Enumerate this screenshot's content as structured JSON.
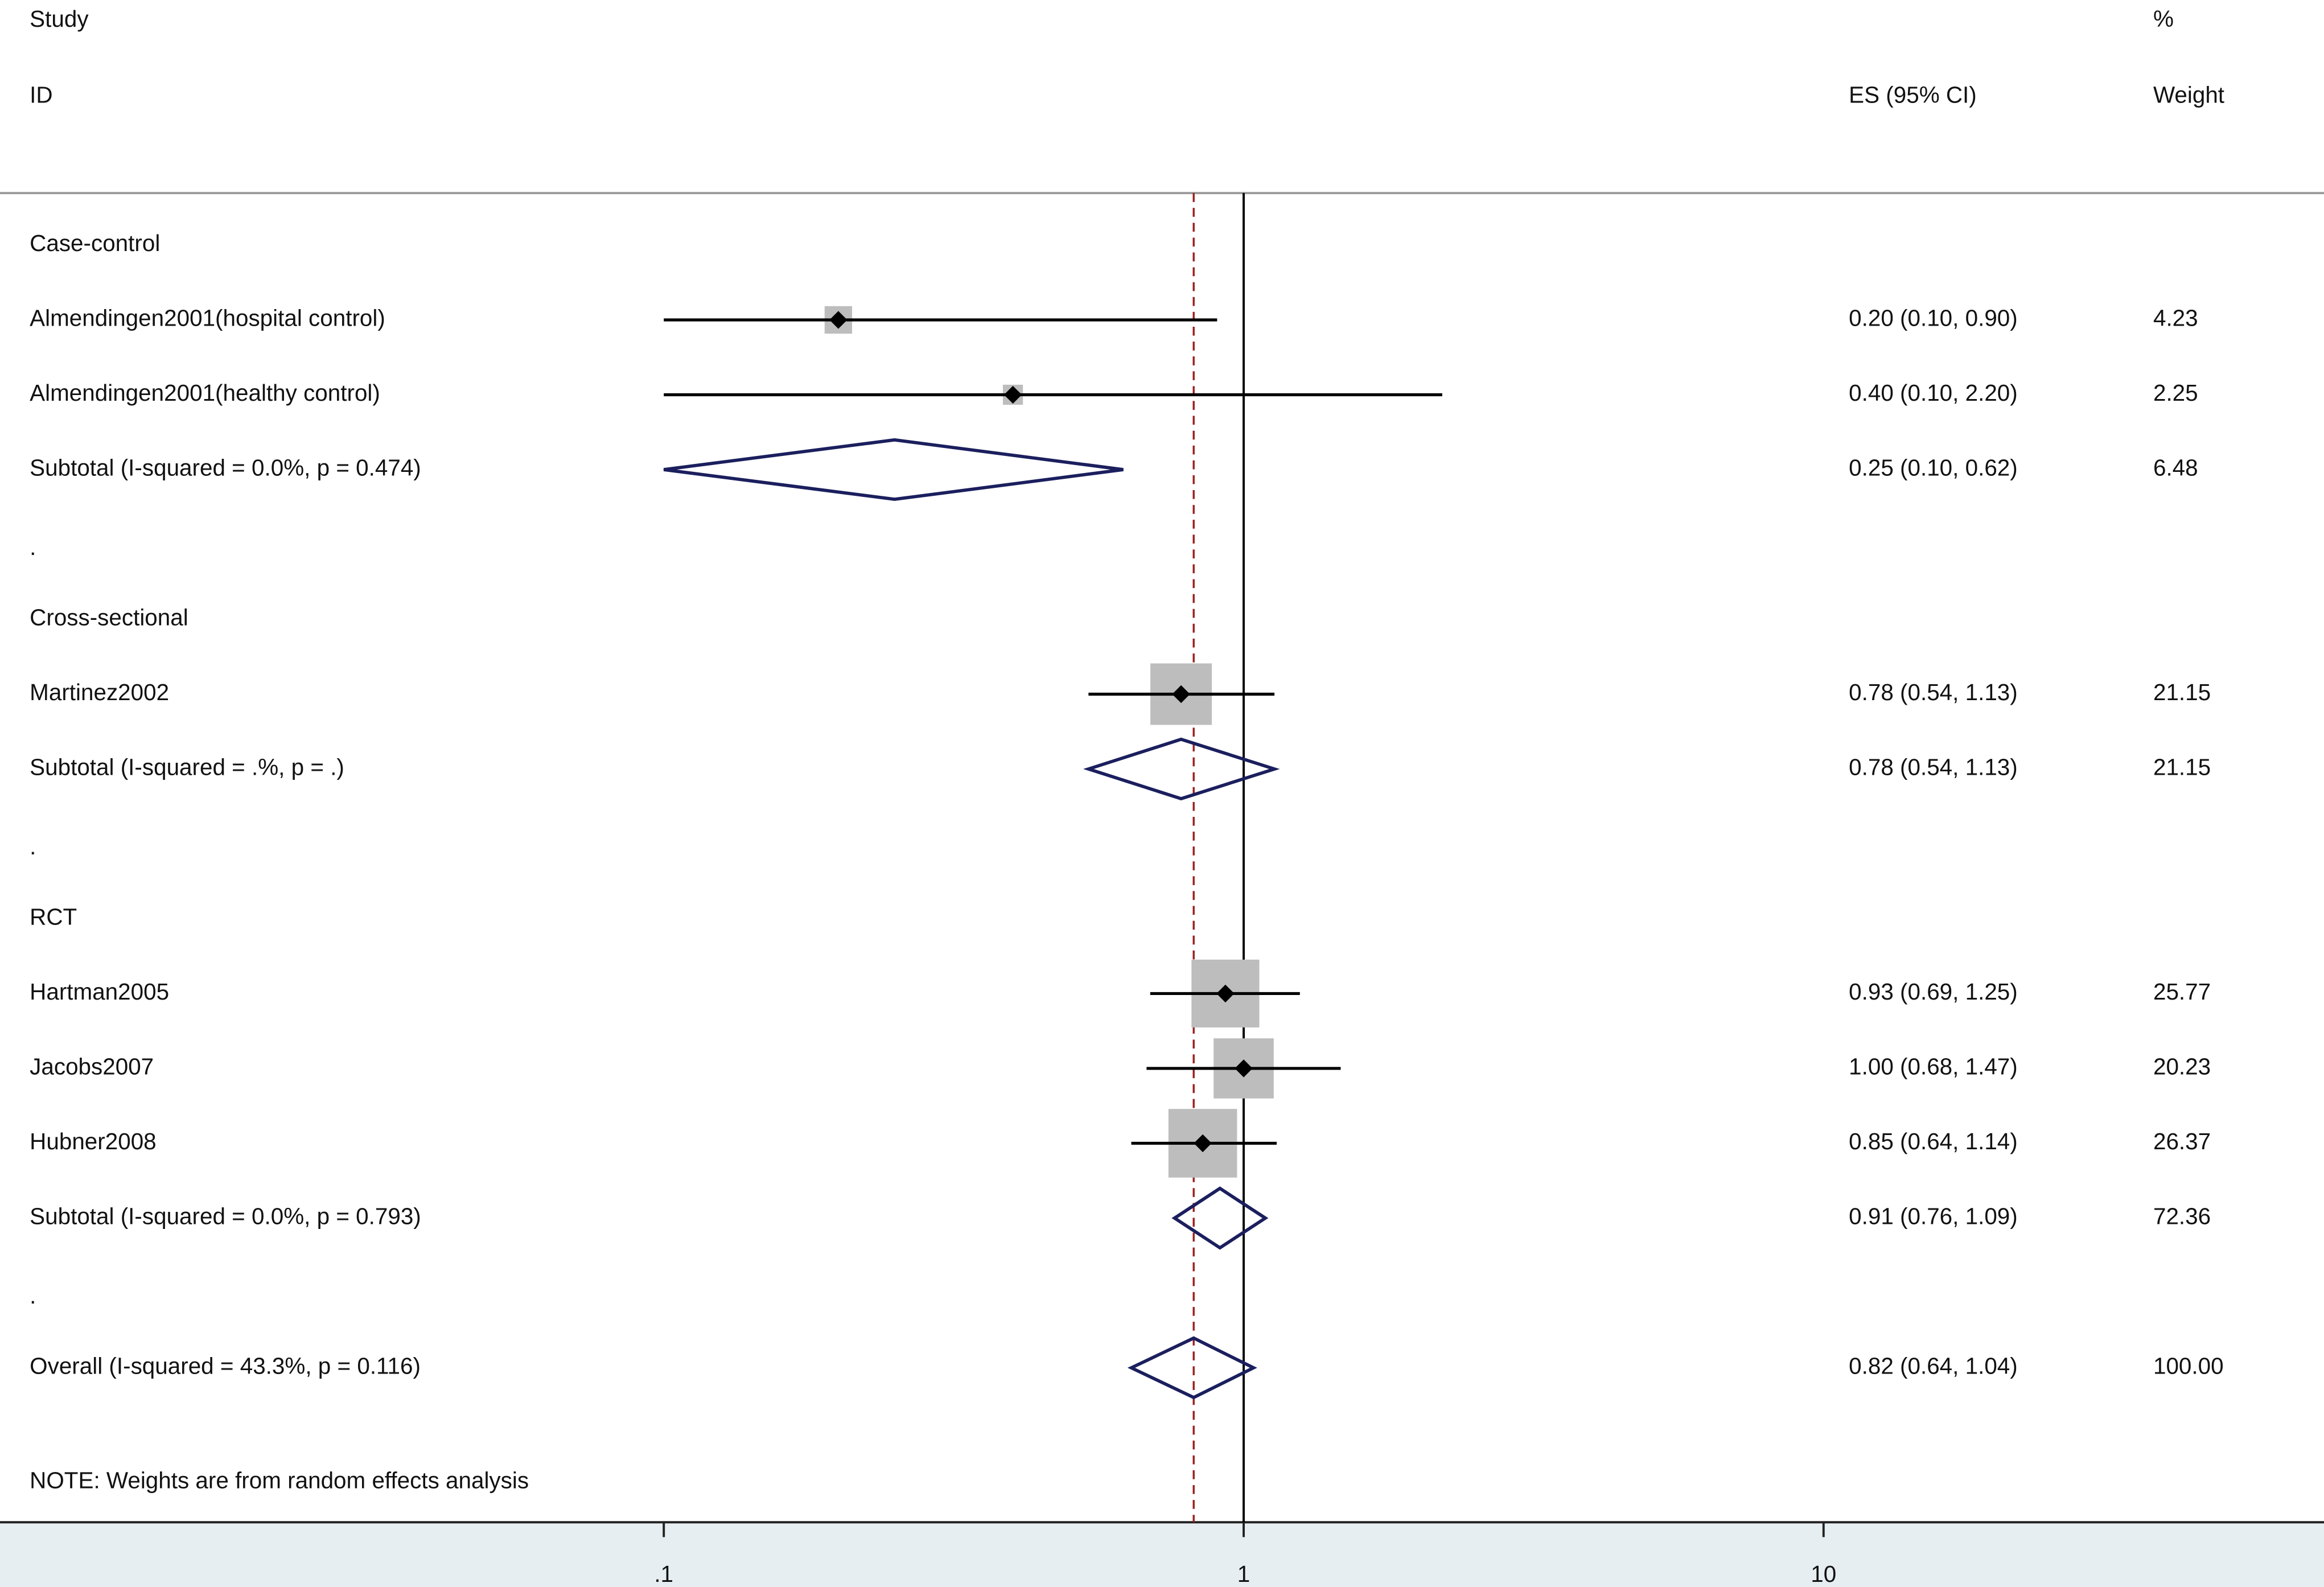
{
  "chart_data": {
    "type": "forest",
    "headers": {
      "study": "Study",
      "id": "ID",
      "es": "ES (95% CI)",
      "percent": "%",
      "weight": "Weight"
    },
    "log_x": true,
    "xlim": [
      0.1,
      10
    ],
    "xticks": [
      {
        "value": 0.1,
        "label": ".1"
      },
      1,
      10
    ],
    "null_line": 1,
    "colors": {
      "box": "#bdbdbd",
      "diamond": "#1b1f5e",
      "reference": "#9b1c1c",
      "axis_band": "#e6eef1"
    },
    "rows": [
      {
        "kind": "group",
        "label": "Case-control"
      },
      {
        "kind": "study",
        "label": "Almendingen2001(hospital control)",
        "es": 0.2,
        "lo": 0.1,
        "hi": 0.9,
        "es_label": "0.20 (0.10, 0.90)",
        "weight": 4.23
      },
      {
        "kind": "study",
        "label": "Almendingen2001(healthy control)",
        "es": 0.4,
        "lo": 0.1,
        "hi": 2.2,
        "es_label": "0.40 (0.10, 2.20)",
        "weight": 2.25
      },
      {
        "kind": "subtotal",
        "label": "Subtotal  (I-squared = 0.0%, p = 0.474)",
        "es": 0.25,
        "lo": 0.1,
        "hi": 0.62,
        "es_label": "0.25 (0.10, 0.62)",
        "weight": 6.48
      },
      {
        "kind": "spacer",
        "label": "."
      },
      {
        "kind": "group",
        "label": "Cross-sectional"
      },
      {
        "kind": "study",
        "label": "Martinez2002",
        "es": 0.78,
        "lo": 0.54,
        "hi": 1.13,
        "es_label": "0.78 (0.54, 1.13)",
        "weight": 21.15
      },
      {
        "kind": "subtotal",
        "label": "Subtotal  (I-squared = .%, p = .)",
        "es": 0.78,
        "lo": 0.54,
        "hi": 1.13,
        "es_label": "0.78 (0.54, 1.13)",
        "weight": 21.15
      },
      {
        "kind": "spacer",
        "label": "."
      },
      {
        "kind": "group",
        "label": "RCT"
      },
      {
        "kind": "study",
        "label": "Hartman2005",
        "es": 0.93,
        "lo": 0.69,
        "hi": 1.25,
        "es_label": "0.93 (0.69, 1.25)",
        "weight": 25.77
      },
      {
        "kind": "study",
        "label": "Jacobs2007",
        "es": 1.0,
        "lo": 0.68,
        "hi": 1.47,
        "es_label": "1.00 (0.68, 1.47)",
        "weight": 20.23
      },
      {
        "kind": "study",
        "label": "Hubner2008",
        "es": 0.85,
        "lo": 0.64,
        "hi": 1.14,
        "es_label": "0.85 (0.64, 1.14)",
        "weight": 26.37
      },
      {
        "kind": "subtotal",
        "label": "Subtotal  (I-squared = 0.0%, p = 0.793)",
        "es": 0.91,
        "lo": 0.76,
        "hi": 1.09,
        "es_label": "0.91 (0.76, 1.09)",
        "weight": 72.36
      },
      {
        "kind": "spacer",
        "label": "."
      },
      {
        "kind": "overall",
        "label": "Overall  (I-squared = 43.3%, p = 0.116)",
        "es": 0.82,
        "lo": 0.64,
        "hi": 1.04,
        "es_label": "0.82 (0.64, 1.04)",
        "weight": {
          "value": 100,
          "label": "100.00"
        }
      }
    ],
    "note": "NOTE: Weights are from random effects analysis"
  }
}
